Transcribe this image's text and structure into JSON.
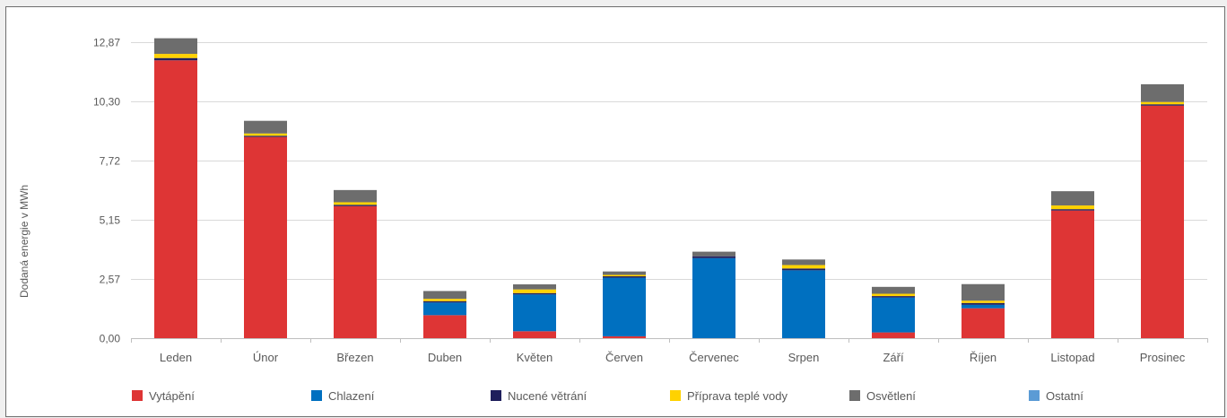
{
  "chart_data": {
    "type": "bar",
    "stacked": true,
    "title": "",
    "xlabel": "",
    "ylabel": "Dodaná energie v MWh",
    "ylim": [
      0,
      12.87
    ],
    "yticks": [
      "0,00",
      "2,57",
      "5,15",
      "7,72",
      "10,30",
      "12,87"
    ],
    "grid": "horizontal",
    "legend_position": "bottom",
    "categories": [
      "Leden",
      "Únor",
      "Březen",
      "Duben",
      "Květen",
      "Červen",
      "Červenec",
      "Srpen",
      "Září",
      "Říjen",
      "Listopad",
      "Prosinec"
    ],
    "series": [
      {
        "name": "Vytápění",
        "color": "#de3535",
        "values": [
          12.08,
          8.75,
          5.74,
          1.0,
          0.3,
          0.08,
          0.0,
          0.0,
          0.25,
          1.3,
          5.55,
          10.11
        ]
      },
      {
        "name": "Chlazení",
        "color": "#0070c0",
        "values": [
          0.0,
          0.0,
          0.0,
          0.55,
          1.6,
          2.55,
          3.48,
          2.95,
          1.52,
          0.15,
          0.0,
          0.0
        ]
      },
      {
        "name": "Nucené větrání",
        "color": "#1f1f5c",
        "values": [
          0.1,
          0.05,
          0.06,
          0.06,
          0.06,
          0.06,
          0.08,
          0.08,
          0.06,
          0.08,
          0.06,
          0.06
        ]
      },
      {
        "name": "Příprava teplé vody",
        "color": "#ffd200",
        "values": [
          0.18,
          0.1,
          0.11,
          0.1,
          0.16,
          0.06,
          0.0,
          0.15,
          0.1,
          0.1,
          0.16,
          0.1
        ]
      },
      {
        "name": "Osvětlení",
        "color": "#6d6d6d",
        "values": [
          0.68,
          0.55,
          0.53,
          0.34,
          0.22,
          0.15,
          0.2,
          0.24,
          0.3,
          0.72,
          0.62,
          0.77
        ]
      },
      {
        "name": "Ostatní",
        "color": "#5b9bd5",
        "values": [
          0,
          0,
          0,
          0,
          0,
          0,
          0,
          0,
          0,
          0,
          0,
          0
        ]
      }
    ]
  }
}
